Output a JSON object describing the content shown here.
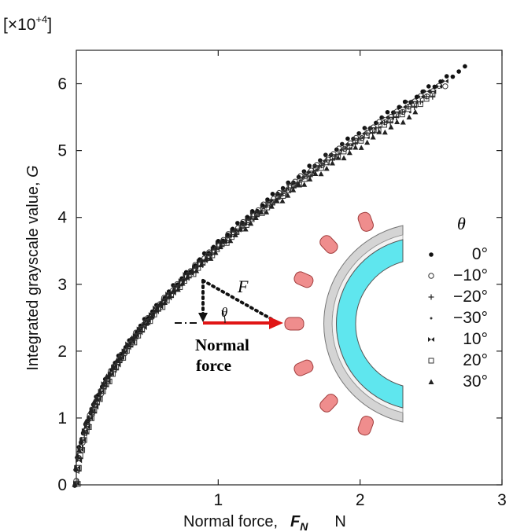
{
  "chart_data": {
    "type": "scatter",
    "multiplier_label": "[×10",
    "multiplier_exp": "+4",
    "multiplier_close": "]",
    "xlabel": "Normal force,",
    "xlabel_symbol": "F",
    "xlabel_sub": "N",
    "xlabel_unit": "N",
    "ylabel": "Integrated grayscale value,",
    "ylabel_symbol": "G",
    "xlim": [
      0,
      3
    ],
    "ylim": [
      0,
      6.5
    ],
    "xticks": [
      "1",
      "2",
      "3"
    ],
    "yticks": [
      "0",
      "1",
      "2",
      "3",
      "4",
      "5",
      "6"
    ],
    "legend_title": "θ",
    "legend_position": "right",
    "series": [
      {
        "name": "0°",
        "marker": "dot",
        "k": 3.6,
        "p": 0.545,
        "xmax": 2.75
      },
      {
        "name": "−10°",
        "marker": "circle",
        "k": 3.58,
        "p": 0.54,
        "xmax": 2.6
      },
      {
        "name": "−20°",
        "marker": "plus",
        "k": 3.56,
        "p": 0.54,
        "xmax": 2.5
      },
      {
        "name": "−30°",
        "marker": "small",
        "k": 3.54,
        "p": 0.535,
        "xmax": 2.45
      },
      {
        "name": "10°",
        "marker": "bowtie",
        "k": 3.58,
        "p": 0.545,
        "xmax": 2.6
      },
      {
        "name": "20°",
        "marker": "square",
        "k": 3.56,
        "p": 0.54,
        "xmax": 2.5
      },
      {
        "name": "30°",
        "marker": "triangle",
        "k": 3.5,
        "p": 0.53,
        "xmax": 2.4
      }
    ],
    "inset": {
      "force_label": "F",
      "angle_label": "θ",
      "normal_label_line1": "Normal",
      "normal_label_line2": "force",
      "colors": {
        "cyan": "#5fe6ee",
        "pad": "#ef8d8d",
        "arrow": "#e01515",
        "shell": "#c8c8c8"
      }
    }
  }
}
